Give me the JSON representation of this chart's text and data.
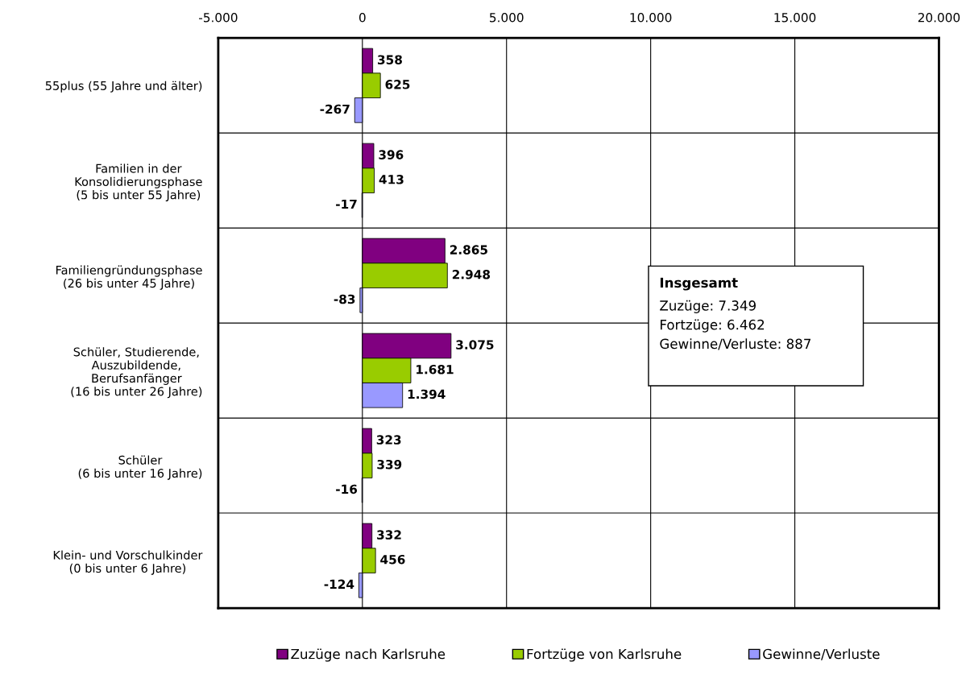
{
  "chart_data": {
    "type": "bar",
    "orientation": "horizontal",
    "categories": [
      "55plus (55 Jahre und älter)",
      "Familien in der\nKonsolidierungsphase\n(5 bis unter 55 Jahre)",
      "Familiengründungsphase\n(26 bis unter 45 Jahre)",
      "Schüler, Studierende,\nAuszubildende,\nBerufsanfänger\n(16 bis unter 26 Jahre)",
      "Schüler\n(6 bis unter 16 Jahre)",
      "Klein- und Vorschulkinder\n(0 bis unter 6 Jahre)"
    ],
    "series": [
      {
        "name": "Zuzüge nach Karlsruhe",
        "color": "#800080",
        "values": [
          358,
          396,
          2865,
          3075,
          323,
          332
        ],
        "value_labels": [
          "358",
          "396",
          "2.865",
          "3.075",
          "323",
          "332"
        ]
      },
      {
        "name": "Fortzüge von Karlsruhe",
        "color": "#99cc00",
        "values": [
          625,
          413,
          2948,
          1681,
          339,
          456
        ],
        "value_labels": [
          "625",
          "413",
          "2.948",
          "1.681",
          "339",
          "456"
        ]
      },
      {
        "name": "Gewinne/Verluste",
        "color": "#9999ff",
        "values": [
          -267,
          -17,
          -83,
          1394,
          -16,
          -124
        ],
        "value_labels": [
          "-267",
          "-17",
          "-83",
          "1.394",
          "-16",
          "-124"
        ]
      }
    ],
    "xlim": [
      -5000,
      20000
    ],
    "xticks": [
      {
        "value": -5000,
        "label": "-5.000"
      },
      0,
      {
        "value": 5000,
        "label": "5.000"
      },
      {
        "value": 10000,
        "label": "10.000"
      },
      {
        "value": 15000,
        "label": "15.000"
      },
      {
        "value": 20000,
        "label": "20.000"
      }
    ],
    "grid": true,
    "legend": "bottom",
    "annotations": [
      "Insgesamt",
      "Zuzüge: 7.349",
      "Fortzüge: 6.462",
      "Gewinne/Verluste: 887"
    ]
  }
}
